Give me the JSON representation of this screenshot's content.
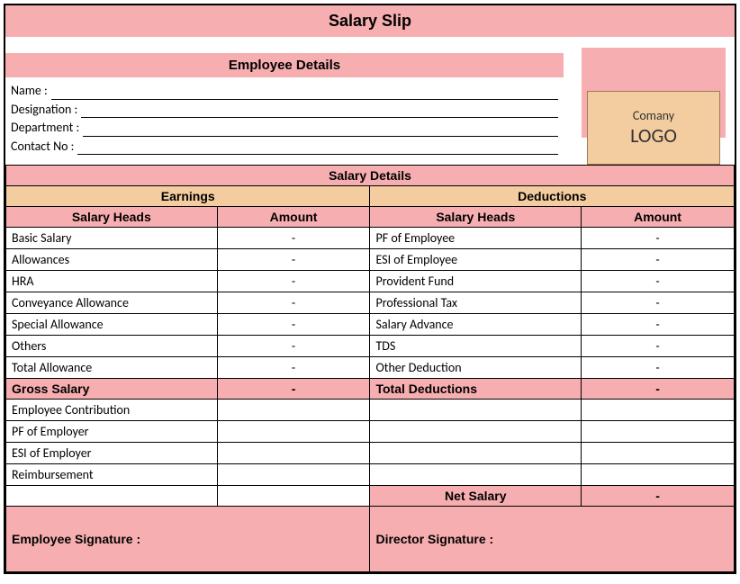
{
  "title": "Salary Slip",
  "colors": {
    "pink": "#f7aeb0",
    "tan": "#f3cca0",
    "border": "#000000"
  },
  "employee": {
    "section_title": "Employee Details",
    "fields": [
      {
        "label": "Name :"
      },
      {
        "label": "Designation :"
      },
      {
        "label": "Department :"
      },
      {
        "label": "Contact No :"
      }
    ]
  },
  "logo": {
    "line1": "Comany",
    "line2": "LOGO"
  },
  "salary": {
    "section_title": "Salary Details",
    "earnings_title": "Earnings",
    "deductions_title": "Deductions",
    "heads_col": "Salary Heads",
    "amount_col": "Amount",
    "earnings": [
      {
        "head": "Basic Salary",
        "amount": "-"
      },
      {
        "head": "Allowances",
        "amount": "-"
      },
      {
        "head": "HRA",
        "amount": "-"
      },
      {
        "head": "Conveyance Allowance",
        "amount": "-"
      },
      {
        "head": "Special Allowance",
        "amount": "-"
      },
      {
        "head": "Others",
        "amount": "-"
      },
      {
        "head": "Total Allowance",
        "amount": "-"
      }
    ],
    "deductions": [
      {
        "head": "PF of Employee",
        "amount": "-"
      },
      {
        "head": "ESI of Employee",
        "amount": "-"
      },
      {
        "head": "Provident Fund",
        "amount": "-"
      },
      {
        "head": "Professional Tax",
        "amount": "-"
      },
      {
        "head": "Salary Advance",
        "amount": "-"
      },
      {
        "head": "TDS",
        "amount": "-"
      },
      {
        "head": "Other Deduction",
        "amount": "-"
      }
    ],
    "gross_label": "Gross Salary",
    "gross_amount": "-",
    "total_ded_label": "Total Deductions",
    "total_ded_amount": "-",
    "employer_rows": [
      {
        "head": "Employee Contribution"
      },
      {
        "head": "PF of Employer"
      },
      {
        "head": "ESI of Employer"
      },
      {
        "head": "Reimbursement"
      }
    ],
    "net_label": "Net Salary",
    "net_amount": "-"
  },
  "signatures": {
    "employee": "Employee Signature :",
    "director": "Director Signature :"
  }
}
